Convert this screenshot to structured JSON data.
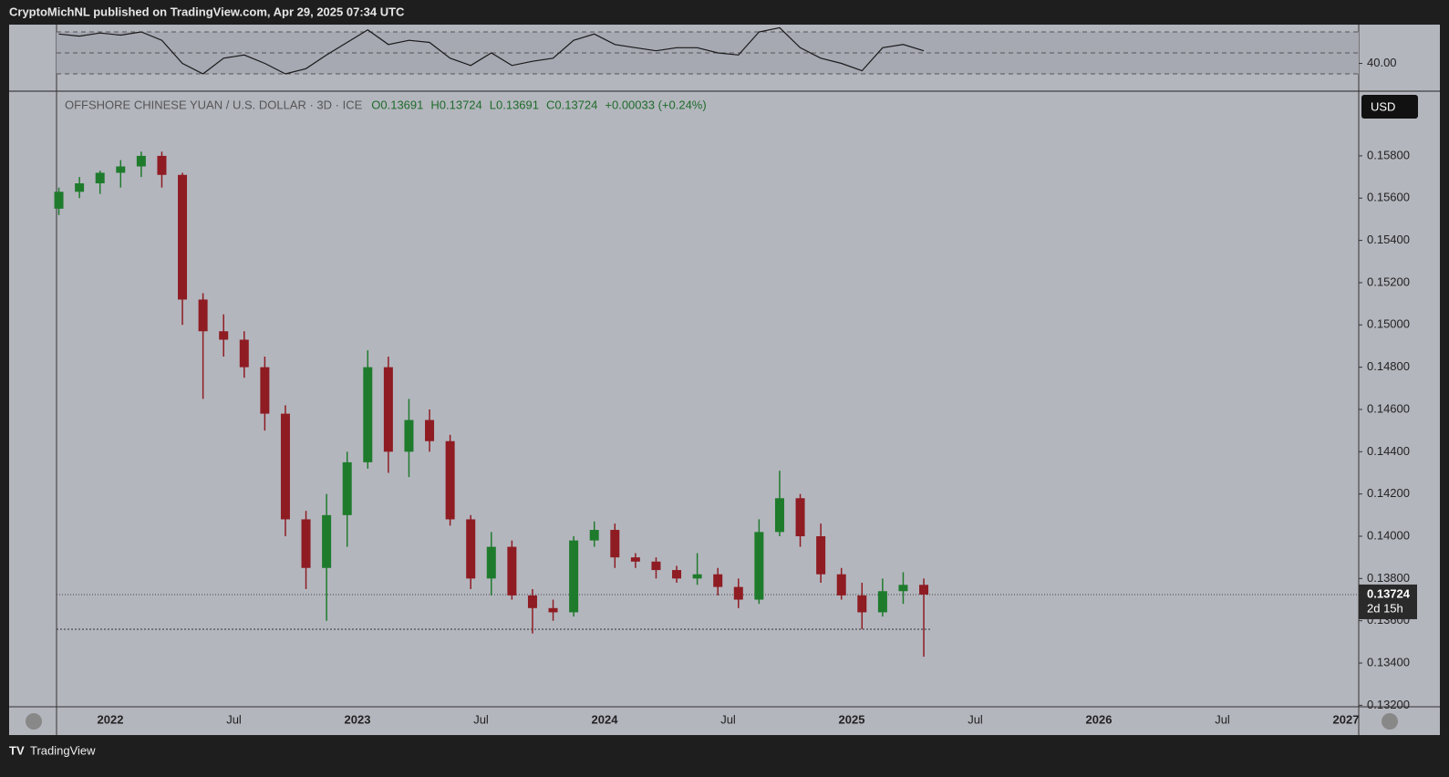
{
  "header": {
    "publisher": "CryptoMichNL published on TradingView.com, Apr 29, 2025 07:34 UTC"
  },
  "footer": {
    "brand": "TradingView"
  },
  "chart_data": [
    {
      "type": "candlestick",
      "title": "OFFSHORE CHINESE YUAN / U.S. DOLLAR · 3D · ICE",
      "legend_values": [
        "O0.13691",
        "H0.13724",
        "L0.13691",
        "C0.13724",
        "+0.00033 (+0.24%)"
      ],
      "currency": "USD",
      "last_price": 0.13724,
      "countdown": "2d 15h",
      "support_line": 0.1356,
      "up_color": "#1e7b2c",
      "down_color": "#8e1c22",
      "grid": false,
      "x": [
        "2021-10",
        "2021-11",
        "2021-12",
        "2022-01",
        "2022-02",
        "2022-03",
        "2022-04",
        "2022-05",
        "2022-06",
        "2022-07",
        "2022-08",
        "2022-09",
        "2022-10",
        "2022-11",
        "2022-12",
        "2023-01",
        "2023-02",
        "2023-03",
        "2023-04",
        "2023-05",
        "2023-06",
        "2023-07",
        "2023-08",
        "2023-09",
        "2023-10",
        "2023-11",
        "2023-12",
        "2024-01",
        "2024-02",
        "2024-03",
        "2024-04",
        "2024-05",
        "2024-06",
        "2024-07",
        "2024-08",
        "2024-09",
        "2024-10",
        "2024-11",
        "2024-12",
        "2025-01",
        "2025-02",
        "2025-03",
        "2025-04"
      ],
      "open": [
        0.1555,
        0.1563,
        0.1567,
        0.1572,
        0.1575,
        0.158,
        0.1571,
        0.1512,
        0.1497,
        0.1493,
        0.148,
        0.1458,
        0.1408,
        0.1385,
        0.141,
        0.1435,
        0.148,
        0.144,
        0.1455,
        0.1445,
        0.1408,
        0.138,
        0.1395,
        0.1372,
        0.1366,
        0.1364,
        0.1398,
        0.1403,
        0.139,
        0.1388,
        0.1384,
        0.138,
        0.1382,
        0.1376,
        0.137,
        0.1402,
        0.1418,
        0.14,
        0.1382,
        0.1372,
        0.1364,
        0.1374,
        0.1377
      ],
      "high": [
        0.1565,
        0.157,
        0.1573,
        0.1578,
        0.1582,
        0.1582,
        0.1572,
        0.1515,
        0.1505,
        0.1497,
        0.1485,
        0.1462,
        0.1412,
        0.142,
        0.144,
        0.1488,
        0.1485,
        0.1465,
        0.146,
        0.1448,
        0.141,
        0.1402,
        0.1398,
        0.1375,
        0.137,
        0.14,
        0.1407,
        0.1406,
        0.1392,
        0.139,
        0.1386,
        0.1392,
        0.1385,
        0.138,
        0.1408,
        0.1431,
        0.142,
        0.1406,
        0.1385,
        0.1378,
        0.138,
        0.1383,
        0.138
      ],
      "low": [
        0.1552,
        0.156,
        0.1562,
        0.1565,
        0.157,
        0.1565,
        0.15,
        0.1465,
        0.1485,
        0.1475,
        0.145,
        0.14,
        0.1375,
        0.136,
        0.1395,
        0.1432,
        0.143,
        0.1428,
        0.144,
        0.1405,
        0.1375,
        0.1372,
        0.137,
        0.1354,
        0.136,
        0.1362,
        0.1395,
        0.1385,
        0.1385,
        0.138,
        0.1378,
        0.1377,
        0.1372,
        0.1366,
        0.1368,
        0.14,
        0.1395,
        0.1378,
        0.137,
        0.1356,
        0.1362,
        0.1368,
        0.1343
      ],
      "close": [
        0.1563,
        0.1567,
        0.1572,
        0.1575,
        0.158,
        0.1571,
        0.1512,
        0.1497,
        0.1493,
        0.148,
        0.1458,
        0.1408,
        0.1385,
        0.141,
        0.1435,
        0.148,
        0.144,
        0.1455,
        0.1445,
        0.1408,
        0.138,
        0.1395,
        0.1372,
        0.1366,
        0.1364,
        0.1398,
        0.1403,
        0.139,
        0.1388,
        0.1384,
        0.138,
        0.1382,
        0.1376,
        0.137,
        0.1402,
        0.1418,
        0.14,
        0.1382,
        0.1372,
        0.1364,
        0.1374,
        0.1377,
        0.13724
      ],
      "ylim": [
        0.13193,
        0.16106
      ],
      "yticks": [
        {
          "value": 0.132,
          "label": "0.13200"
        },
        {
          "value": 0.134,
          "label": "0.13400"
        },
        {
          "value": 0.136,
          "label": "0.13600"
        },
        {
          "value": 0.138,
          "label": "0.13800"
        },
        {
          "value": 0.14,
          "label": "0.14000"
        },
        {
          "value": 0.142,
          "label": "0.14200"
        },
        {
          "value": 0.144,
          "label": "0.14400"
        },
        {
          "value": 0.146,
          "label": "0.14600"
        },
        {
          "value": 0.148,
          "label": "0.14800"
        },
        {
          "value": 0.15,
          "label": "0.15000"
        },
        {
          "value": 0.152,
          "label": "0.15200"
        },
        {
          "value": 0.154,
          "label": "0.15400"
        },
        {
          "value": 0.156,
          "label": "0.15600"
        },
        {
          "value": 0.158,
          "label": "0.15800"
        }
      ],
      "xticks": [
        {
          "value": "2022-01",
          "label": "2022"
        },
        {
          "value": "2022-07",
          "label": "Jul"
        },
        {
          "value": "2023-01",
          "label": "2023"
        },
        {
          "value": "2023-07",
          "label": "Jul"
        },
        {
          "value": "2024-01",
          "label": "2024"
        },
        {
          "value": "2024-07",
          "label": "Jul"
        },
        {
          "value": "2025-01",
          "label": "2025"
        },
        {
          "value": "2025-07",
          "label": "Jul"
        },
        {
          "value": "2026-01",
          "label": "2026"
        },
        {
          "value": "2026-07",
          "label": "Jul"
        },
        {
          "value": "2027-01",
          "label": "2027"
        }
      ]
    },
    {
      "type": "line",
      "color": "#1a1a1a",
      "x": [
        "2021-10",
        "2021-11",
        "2021-12",
        "2022-01",
        "2022-02",
        "2022-03",
        "2022-04",
        "2022-05",
        "2022-06",
        "2022-07",
        "2022-08",
        "2022-09",
        "2022-10",
        "2022-11",
        "2022-12",
        "2023-01",
        "2023-02",
        "2023-03",
        "2023-04",
        "2023-05",
        "2023-06",
        "2023-07",
        "2023-08",
        "2023-09",
        "2023-10",
        "2023-11",
        "2023-12",
        "2024-01",
        "2024-02",
        "2024-03",
        "2024-04",
        "2024-05",
        "2024-06",
        "2024-07",
        "2024-08",
        "2024-09",
        "2024-10",
        "2024-11",
        "2024-12",
        "2025-01",
        "2025-02",
        "2025-03",
        "2025-04"
      ],
      "values": [
        68,
        66,
        69,
        67,
        70,
        62,
        40,
        30,
        45,
        48,
        40,
        30,
        35,
        48,
        60,
        72,
        58,
        62,
        60,
        45,
        38,
        50,
        38,
        42,
        45,
        62,
        68,
        58,
        55,
        52,
        55,
        55,
        50,
        48,
        70,
        74,
        55,
        45,
        40,
        33,
        55,
        58,
        52
      ],
      "ylim": [
        13.5,
        77
      ],
      "yticks": [
        {
          "value": 40,
          "label": "40.00"
        }
      ],
      "levels": [
        30,
        50,
        70
      ]
    }
  ]
}
